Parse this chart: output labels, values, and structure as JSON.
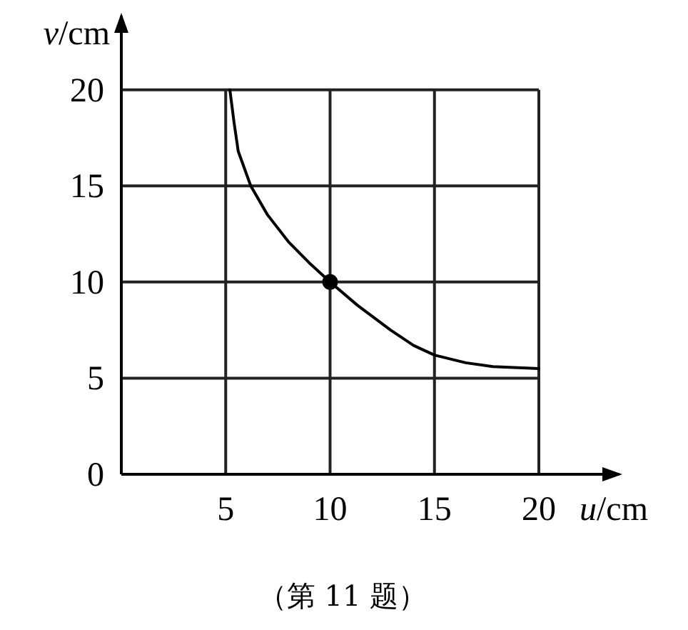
{
  "chart_data": {
    "type": "line",
    "xlabel": "u/cm",
    "ylabel": "v/cm",
    "xlim": [
      0,
      24
    ],
    "ylim": [
      0,
      24
    ],
    "xticks": [
      5,
      10,
      15,
      20
    ],
    "yticks": [
      0,
      5,
      10,
      15,
      20
    ],
    "grid": true,
    "series": [
      {
        "type": "line",
        "color": "#000000",
        "marker": "none",
        "x": [
          5.2,
          5.4,
          5.6,
          6.2,
          7.0,
          8.0,
          9.0,
          10.0,
          11.3,
          12.9,
          14.0,
          15.0,
          16.5,
          17.8,
          20.0
        ],
        "values": [
          20.0,
          18.3,
          16.8,
          15.0,
          13.5,
          12.1,
          11.0,
          10.0,
          8.8,
          7.5,
          6.7,
          6.2,
          5.8,
          5.6,
          5.5
        ]
      },
      {
        "type": "scatter",
        "color": "#000000",
        "marker": "circle",
        "x": [
          10
        ],
        "values": [
          10
        ]
      }
    ],
    "annotations": [
      "（第 11 题）"
    ]
  }
}
